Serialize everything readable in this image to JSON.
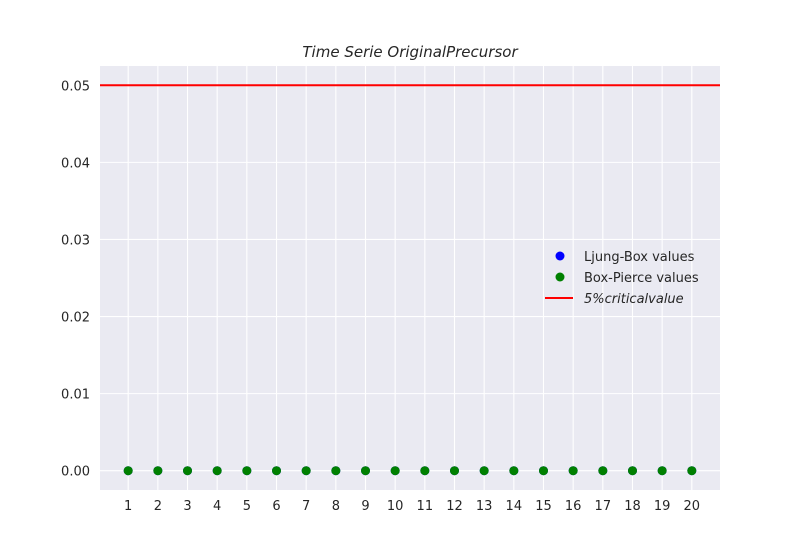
{
  "chart_data": {
    "type": "scatter",
    "title": "Time Serie OriginalPrecursor",
    "xlabel": "",
    "ylabel": "",
    "x": [
      1,
      2,
      3,
      4,
      5,
      6,
      7,
      8,
      9,
      10,
      11,
      12,
      13,
      14,
      15,
      16,
      17,
      18,
      19,
      20
    ],
    "x_tick_labels": [
      "1",
      "2",
      "3",
      "4",
      "5",
      "6",
      "7",
      "8",
      "9",
      "10",
      "11",
      "12",
      "13",
      "14",
      "15",
      "16",
      "17",
      "18",
      "19",
      "20"
    ],
    "y_tick_labels": [
      "0.00",
      "0.01",
      "0.02",
      "0.03",
      "0.04",
      "0.05"
    ],
    "y_ticks": [
      0,
      0.01,
      0.02,
      0.03,
      0.04,
      0.05
    ],
    "xlim": [
      0.05,
      20.95
    ],
    "ylim": [
      -0.0025,
      0.0525
    ],
    "series": [
      {
        "name": "Ljung-Box values",
        "color": "#0000ff",
        "values": [
          0,
          0,
          0,
          0,
          0,
          0,
          0,
          0,
          0,
          0,
          0,
          0,
          0,
          0,
          0,
          0,
          0,
          0,
          0,
          0
        ]
      },
      {
        "name": "Box-Pierce values",
        "color": "#008000",
        "values": [
          0,
          0,
          0,
          0,
          0,
          0,
          0,
          0,
          0,
          0,
          0,
          0,
          0,
          0,
          0,
          0,
          0,
          0,
          0,
          0
        ]
      }
    ],
    "reference_line": {
      "name": "5%criticalvalue",
      "value": 0.05,
      "color": "#ff0000"
    },
    "legend_position": "center-right",
    "grid": true,
    "background": "#eaeaf2"
  }
}
